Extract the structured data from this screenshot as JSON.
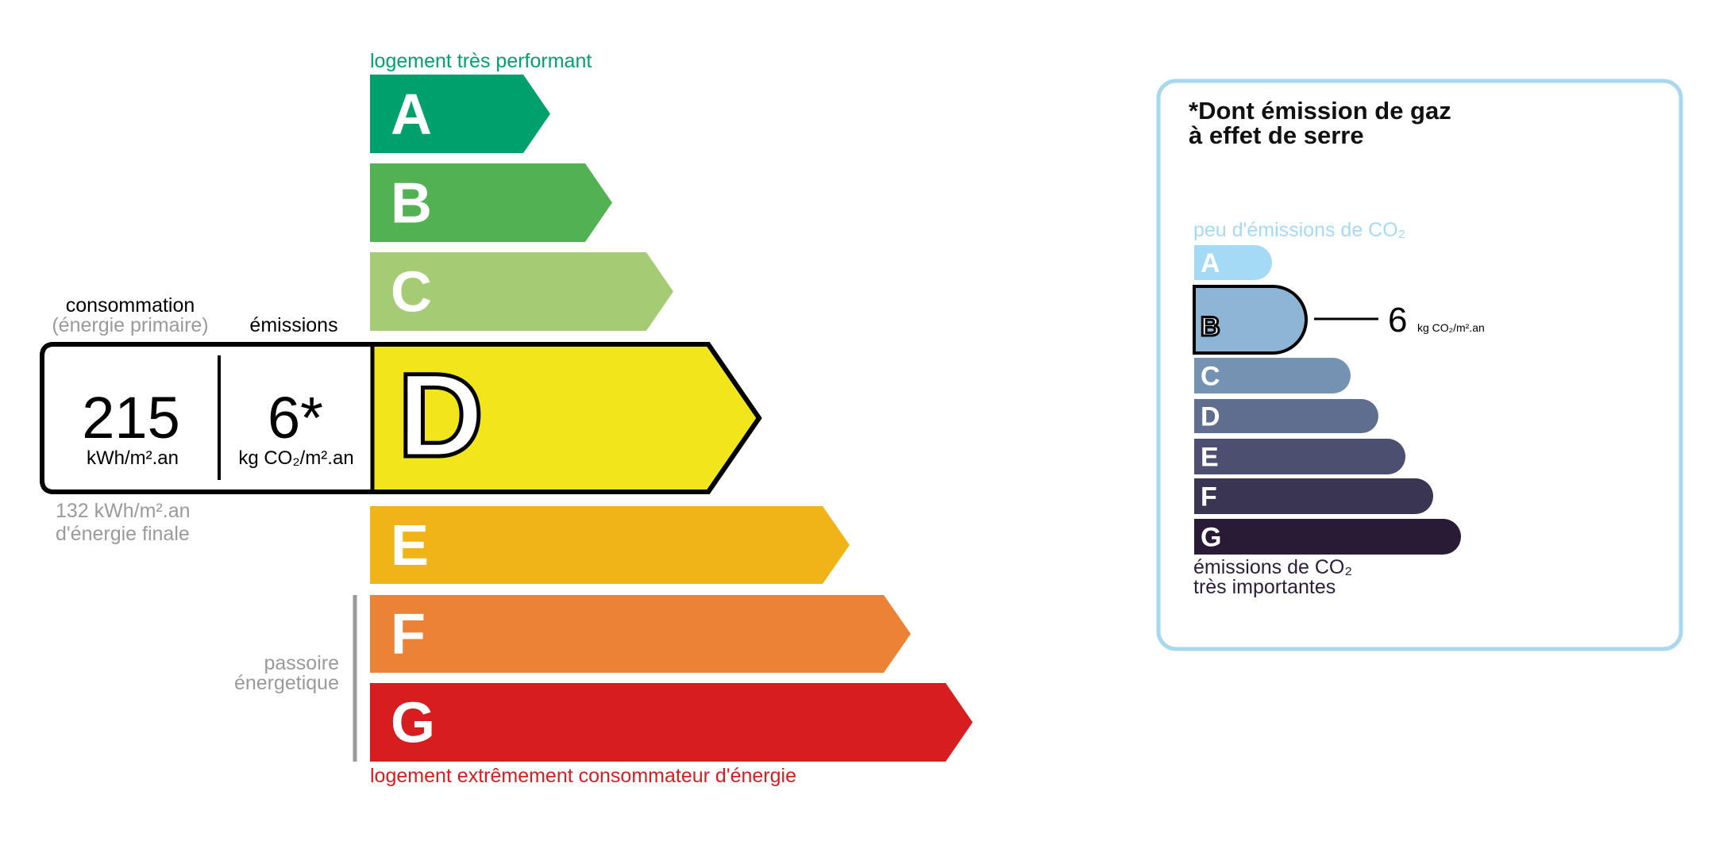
{
  "energy": {
    "top_label": "logement très performant",
    "bottom_label": "logement extrêmement consommateur d'énergie",
    "passoire_line1": "passoire",
    "passoire_line2": "énergetique",
    "active_class": "D",
    "classes": [
      {
        "letter": "A",
        "color": "#00a06d"
      },
      {
        "letter": "B",
        "color": "#52b153"
      },
      {
        "letter": "C",
        "color": "#a5cc74"
      },
      {
        "letter": "D",
        "color": "#f0e61a"
      },
      {
        "letter": "E",
        "color": "#f0b418"
      },
      {
        "letter": "F",
        "color": "#eb8235"
      },
      {
        "letter": "G",
        "color": "#d71d20"
      }
    ],
    "consumption_label": "consommation",
    "consumption_sublabel": "(énergie primaire)",
    "emissions_label": "émissions",
    "consumption_value": "215",
    "consumption_unit": "kWh/m².an",
    "emissions_value": "6*",
    "emissions_unit": "kg CO₂/m².an",
    "final_energy_value": "132 kWh/m².an",
    "final_energy_label": "d'énergie finale"
  },
  "ges": {
    "title_line1": "*Dont émission de gaz",
    "title_line2": "à effet de serre",
    "top_label": "peu d'émissions de CO₂",
    "bottom_line1": "émissions de CO₂",
    "bottom_line2": "très importantes",
    "active_class": "B",
    "value": "6",
    "unit": "kg CO₂/m².an",
    "border_color": "#a8d8f0",
    "classes": [
      {
        "letter": "A",
        "color": "#a4daf6"
      },
      {
        "letter": "B",
        "color": "#8db5d6"
      },
      {
        "letter": "C",
        "color": "#7592b3"
      },
      {
        "letter": "D",
        "color": "#5f6d8f"
      },
      {
        "letter": "E",
        "color": "#4d4f70"
      },
      {
        "letter": "F",
        "color": "#393552"
      },
      {
        "letter": "G",
        "color": "#291b35"
      }
    ]
  }
}
